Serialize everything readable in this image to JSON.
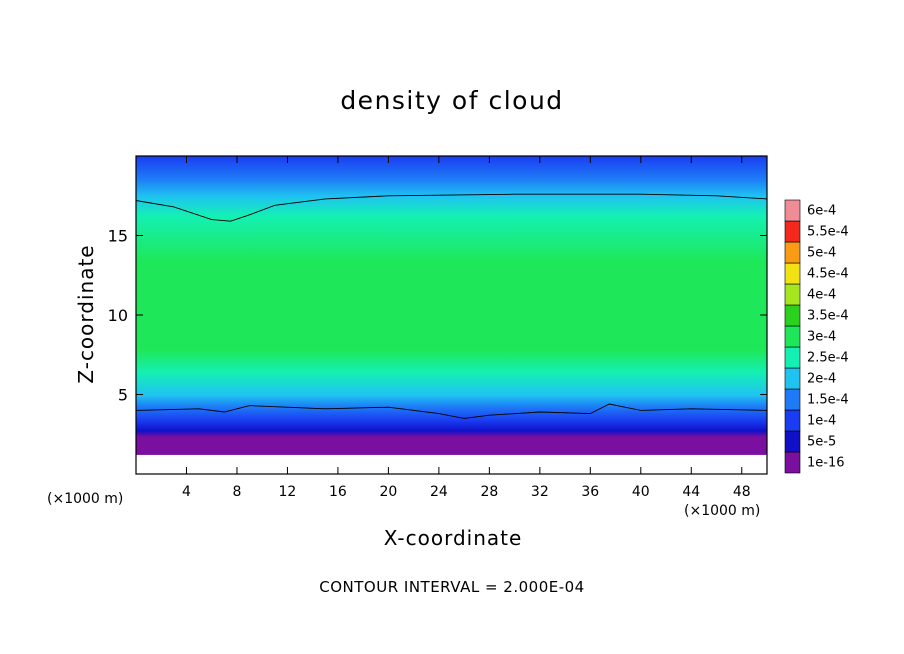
{
  "chart_data": {
    "type": "heatmap",
    "title": "density of cloud",
    "xlabel": "X-coordinate",
    "ylabel": "Z-coordinate",
    "x_unit_label": "(×1000 m)",
    "z_unit_label": "(×1000 m)",
    "footer": "CONTOUR INTERVAL = 2.000E-04",
    "xlim": [
      0,
      50
    ],
    "ylim": [
      0,
      20
    ],
    "x_ticks": [
      {
        "value": 4,
        "label": "4"
      },
      {
        "value": 8,
        "label": "8"
      },
      {
        "value": 12,
        "label": "12"
      },
      {
        "value": 16,
        "label": "16"
      },
      {
        "value": 20,
        "label": "20"
      },
      {
        "value": 24,
        "label": "24"
      },
      {
        "value": 28,
        "label": "28"
      },
      {
        "value": 32,
        "label": "32"
      },
      {
        "value": 36,
        "label": "36"
      },
      {
        "value": 40,
        "label": "40"
      },
      {
        "value": 44,
        "label": "44"
      },
      {
        "value": 48,
        "label": "48"
      }
    ],
    "y_ticks": [
      {
        "value": 5,
        "label": "5"
      },
      {
        "value": 10,
        "label": "10"
      },
      {
        "value": 15,
        "label": "15"
      }
    ],
    "colorbar": {
      "levels": [
        {
          "label": "1e-16",
          "color": "#7a0fa0"
        },
        {
          "label": "5e-5",
          "color": "#1010c8"
        },
        {
          "label": "1e-4",
          "color": "#1a3cf2"
        },
        {
          "label": "1.5e-4",
          "color": "#1e7af6"
        },
        {
          "label": "2e-4",
          "color": "#1fc3f2"
        },
        {
          "label": "2.5e-4",
          "color": "#14f0b4"
        },
        {
          "label": "3e-4",
          "color": "#1ee85a"
        },
        {
          "label": "3.5e-4",
          "color": "#2ad21e"
        },
        {
          "label": "4e-4",
          "color": "#a6e61e"
        },
        {
          "label": "4.5e-4",
          "color": "#f2e214"
        },
        {
          "label": "5e-4",
          "color": "#fa9b14"
        },
        {
          "label": "5.5e-4",
          "color": "#f5281e"
        },
        {
          "label": "6e-4",
          "color": "#f08c96"
        }
      ]
    },
    "vertical_profile": [
      {
        "z": 1.2,
        "value": 0
      },
      {
        "z": 1.6,
        "value": 5e-05
      },
      {
        "z": 2.3,
        "value": 0.0001
      },
      {
        "z": 3.2,
        "value": 0.00015
      },
      {
        "z": 4.0,
        "value": 0.0002
      },
      {
        "z": 5.5,
        "value": 0.00025
      },
      {
        "z": 7.0,
        "value": 0.0003
      },
      {
        "z": 9.5,
        "value": 0.00032
      },
      {
        "z": 13.0,
        "value": 0.0003
      },
      {
        "z": 16.0,
        "value": 0.00025
      },
      {
        "z": 17.3,
        "value": 0.0002
      },
      {
        "z": 18.5,
        "value": 0.00015
      },
      {
        "z": 20.0,
        "value": 0.0001
      }
    ],
    "contour_2e-4": {
      "upper": [
        {
          "x": 0,
          "z": 17.2
        },
        {
          "x": 3,
          "z": 16.8
        },
        {
          "x": 6,
          "z": 16.0
        },
        {
          "x": 7.5,
          "z": 15.9
        },
        {
          "x": 9,
          "z": 16.3
        },
        {
          "x": 11,
          "z": 16.9
        },
        {
          "x": 15,
          "z": 17.3
        },
        {
          "x": 20,
          "z": 17.5
        },
        {
          "x": 30,
          "z": 17.6
        },
        {
          "x": 40,
          "z": 17.6
        },
        {
          "x": 46,
          "z": 17.5
        },
        {
          "x": 50,
          "z": 17.3
        }
      ],
      "lower": [
        {
          "x": 0,
          "z": 4.0
        },
        {
          "x": 5,
          "z": 4.1
        },
        {
          "x": 7,
          "z": 3.9
        },
        {
          "x": 9,
          "z": 4.3
        },
        {
          "x": 15,
          "z": 4.1
        },
        {
          "x": 20,
          "z": 4.2
        },
        {
          "x": 24,
          "z": 3.8
        },
        {
          "x": 26,
          "z": 3.5
        },
        {
          "x": 28,
          "z": 3.7
        },
        {
          "x": 32,
          "z": 3.9
        },
        {
          "x": 36,
          "z": 3.8
        },
        {
          "x": 37.5,
          "z": 4.4
        },
        {
          "x": 40,
          "z": 4.0
        },
        {
          "x": 44,
          "z": 4.1
        },
        {
          "x": 50,
          "z": 4.0
        }
      ]
    }
  }
}
